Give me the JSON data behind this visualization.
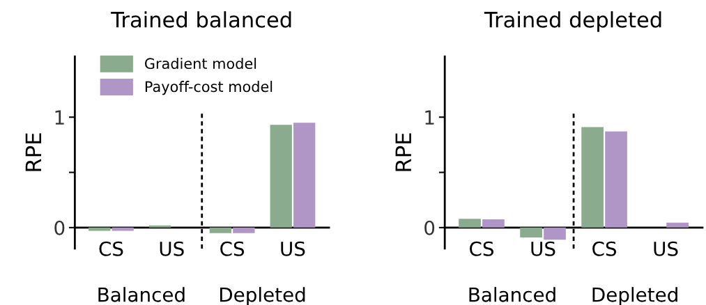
{
  "chart_data": [
    {
      "type": "bar",
      "title": "Trained balanced",
      "ylabel": "RPE",
      "categories": [
        "CS",
        "US",
        "CS",
        "US"
      ],
      "series": [
        {
          "name": "Gradient model",
          "color": "#8aab8e",
          "values": [
            -0.03,
            0.02,
            -0.05,
            0.93
          ]
        },
        {
          "name": "Payoff-cost model",
          "color": "#b096c6",
          "values": [
            -0.03,
            0,
            -0.05,
            0.95
          ]
        }
      ],
      "ylim": [
        -0.19,
        1.55
      ],
      "yticks": [
        0,
        {
          "value": 0.5,
          "label": null
        },
        1
      ],
      "annotations": [
        "Balanced",
        "Depleted"
      ],
      "legend": "top left",
      "grid": false
    },
    {
      "type": "bar",
      "title": "Trained depleted",
      "ylabel": "RPE",
      "categories": [
        "CS",
        "US",
        "CS",
        "US"
      ],
      "series": [
        {
          "color": "#8aab8e",
          "values": [
            0.08,
            -0.09,
            0.91,
            0
          ]
        },
        {
          "color": "#b096c6",
          "values": [
            0.075,
            -0.11,
            0.87,
            0.045
          ]
        }
      ],
      "ylim": [
        -0.19,
        1.55
      ],
      "yticks": [
        0,
        {
          "value": 0.5,
          "label": null
        },
        1
      ],
      "annotations": [
        "Balanced",
        "Depleted"
      ],
      "grid": false
    }
  ]
}
